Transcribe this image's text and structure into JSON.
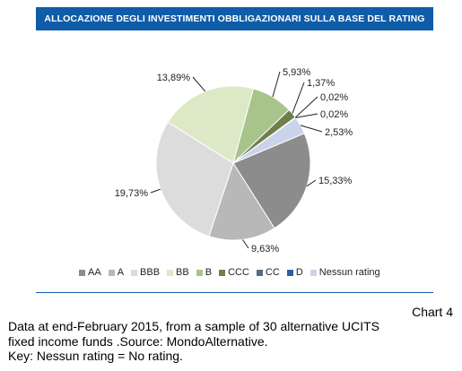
{
  "chart_title": "ALLOCAZIONE DEGLI INVESTIMENTI OBBLIGAZIONARI SULLA BASE DEL RATING",
  "chart_number": "Chart 4",
  "caption_lines": [
    "Data at end-February 2015, from a sample of 30 alternative UCITS",
    "fixed income funds .Source: MondoAlternative.",
    "Key: Nessun rating = No rating."
  ],
  "chart_data": {
    "type": "pie",
    "title": "ALLOCAZIONE DEGLI INVESTIMENTI OBBLIGAZIONARI SULLA BASE DEL RATING",
    "legend_position": "bottom",
    "slices": [
      {
        "name": "AA",
        "value": 15.33,
        "label": "15,33%",
        "color": "#8c8c8c"
      },
      {
        "name": "A",
        "value": 9.63,
        "label": "9,63%",
        "color": "#b8b8b8"
      },
      {
        "name": "BBB",
        "value": 19.73,
        "label": "19,73%",
        "color": "#dcdcdc"
      },
      {
        "name": "BB",
        "value": 13.89,
        "label": "13,89%",
        "color": "#dde8c6"
      },
      {
        "name": "B",
        "value": 5.93,
        "label": "5,93%",
        "color": "#a9c48a"
      },
      {
        "name": "CCC",
        "value": 1.37,
        "label": "1,37%",
        "color": "#6f7f4a"
      },
      {
        "name": "CC",
        "value": 0.02,
        "label": "0,02%",
        "color": "#556a80"
      },
      {
        "name": "D",
        "value": 0.02,
        "label": "0,02%",
        "color": "#2e5fa3"
      },
      {
        "name": "Nessun rating",
        "value": 2.53,
        "label": "2,53%",
        "color": "#c9d3ec"
      }
    ]
  }
}
